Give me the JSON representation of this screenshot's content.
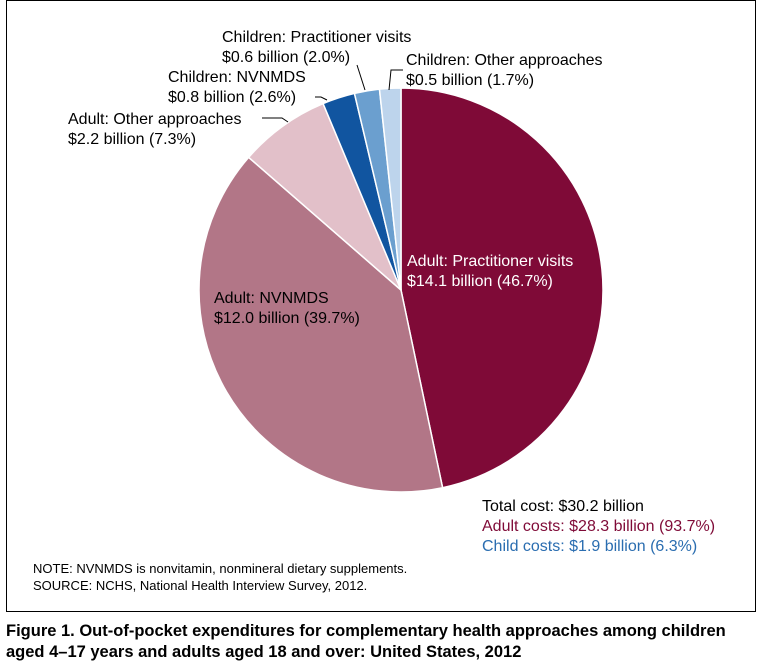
{
  "chart_data": {
    "type": "pie",
    "slices": [
      {
        "label": "Adult: Practitioner visits",
        "amount": "$14.1 billion (46.7%)",
        "value": 14.1,
        "percent": 46.7,
        "color": "#7f0a37"
      },
      {
        "label": "Adult: NVNMDS",
        "amount": "$12.0 billion (39.7%)",
        "value": 12.0,
        "percent": 39.7,
        "color": "#b27687"
      },
      {
        "label": "Adult: Other approaches",
        "amount": "$2.2 billion (7.3%)",
        "value": 2.2,
        "percent": 7.3,
        "color": "#e2c0c9"
      },
      {
        "label": "Children: NVNMDS",
        "amount": "$0.8 billion (2.6%)",
        "value": 0.8,
        "percent": 2.6,
        "color": "#1155a0"
      },
      {
        "label": "Children: Practitioner visits",
        "amount": "$0.6 billion (2.0%)",
        "value": 0.6,
        "percent": 2.0,
        "color": "#6b9fcf"
      },
      {
        "label": "Children: Other approaches",
        "amount": "$0.5 billion (1.7%)",
        "value": 0.5,
        "percent": 1.7,
        "color": "#bdd4ec"
      }
    ]
  },
  "totals": {
    "total": "Total cost: $30.2 billion",
    "adult": "Adult costs: $28.3 billion (93.7%)",
    "child": "Child costs: $1.9 billion (6.3%)",
    "adult_color": "#7f0a37",
    "child_color": "#2a6db0"
  },
  "notes": {
    "note": "NOTE: NVNMDS is nonvitamin, nonmineral dietary supplements.",
    "source": "SOURCE: NCHS, National Health Interview Survey, 2012."
  },
  "caption": {
    "line1": "Figure 1. Out-of-pocket expenditures for complementary health approaches among children",
    "line2": "aged 4–17 years and adults aged 18 and over: United States, 2012"
  }
}
